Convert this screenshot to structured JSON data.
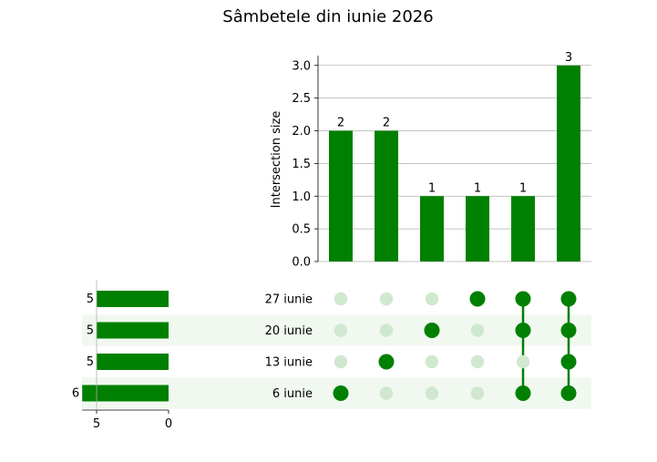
{
  "chart_data": {
    "type": "upset",
    "title": "Sâmbetele din iunie 2026",
    "ylabel": "Intersection size",
    "ylim": [
      0,
      3.15
    ],
    "yticks": [
      "0.0",
      "0.5",
      "1.0",
      "1.5",
      "2.0",
      "2.5",
      "3.0"
    ],
    "grid": true,
    "sets": [
      "27 iunie",
      "20 iunie",
      "13 iunie",
      "6 iunie"
    ],
    "set_sizes": [
      5,
      5,
      5,
      6
    ],
    "set_size_ticks": [
      "5",
      "0"
    ],
    "set_size_xlim": [
      0,
      6
    ],
    "intersections": [
      {
        "members": [
          "6 iunie"
        ],
        "size": 2
      },
      {
        "members": [
          "13 iunie"
        ],
        "size": 2
      },
      {
        "members": [
          "20 iunie"
        ],
        "size": 1
      },
      {
        "members": [
          "27 iunie"
        ],
        "size": 1
      },
      {
        "members": [
          "27 iunie",
          "20 iunie",
          "6 iunie"
        ],
        "size": 1
      },
      {
        "members": [
          "27 iunie",
          "20 iunie",
          "13 iunie",
          "6 iunie"
        ],
        "size": 3
      }
    ],
    "colors": {
      "bar": "#008000",
      "inactive_dot": "#d0e8d0",
      "stripe": "#f0f8f0",
      "grid": "#b0b0b0"
    }
  }
}
